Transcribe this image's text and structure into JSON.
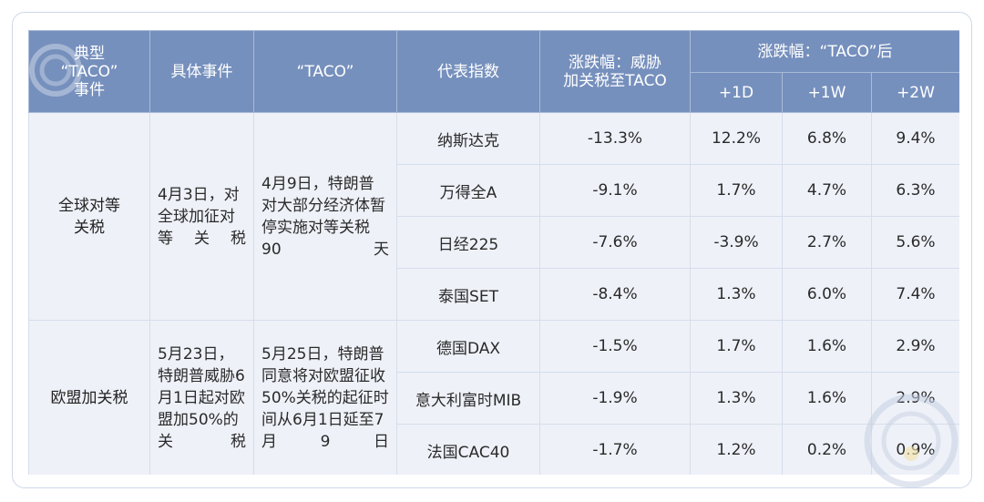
{
  "header": {
    "col_event_type": "典型\n“TACO”\n事件",
    "col_specific_event": "具体事件",
    "col_taco": "“TACO”",
    "col_index": "代表指数",
    "col_threat": "涨跌幅：威胁\n加关税至TACO",
    "col_after": "涨跌幅：“TACO”后",
    "sub_1d": "+1D",
    "sub_1w": "+1W",
    "sub_2w": "+2W"
  },
  "groups": [
    {
      "type": "全球对等\n关税",
      "event": "4月3日，对全球加征对等关税",
      "taco": "4月9日，特朗普对大部分经济体暂停实施对等关税90天",
      "rows": [
        {
          "index": "纳斯达克",
          "threat": "-13.3%",
          "d1": "12.2%",
          "w1": "6.8%",
          "w2": "9.4%"
        },
        {
          "index": "万得全A",
          "threat": "-9.1%",
          "d1": "1.7%",
          "w1": "4.7%",
          "w2": "6.3%"
        },
        {
          "index": "日经225",
          "threat": "-7.6%",
          "d1": "-3.9%",
          "w1": "2.7%",
          "w2": "5.6%"
        },
        {
          "index": "泰国SET",
          "threat": "-8.4%",
          "d1": "1.3%",
          "w1": "6.0%",
          "w2": "7.4%"
        }
      ]
    },
    {
      "type": "欧盟加关税",
      "event": "5月23日，特朗普威胁6月1日起对欧盟加50%的关税",
      "taco": "5月25日，特朗普同意将对欧盟征收50%关税的起征时间从6月1日延至7月9日",
      "rows": [
        {
          "index": "德国DAX",
          "threat": "-1.5%",
          "d1": "1.7%",
          "w1": "1.6%",
          "w2": "2.9%"
        },
        {
          "index": "意大利富时MIB",
          "threat": "-1.9%",
          "d1": "1.3%",
          "w1": "1.6%",
          "w2": "2.9%"
        },
        {
          "index": "法国CAC40",
          "threat": "-1.7%",
          "d1": "1.2%",
          "w1": "0.2%",
          "w2": "0.9%"
        }
      ]
    }
  ],
  "colors": {
    "header_bg": "#7690bd",
    "body_bg": "#eef1f8",
    "border": "#d6deea"
  },
  "icons": {
    "logo": "circle-logo-icon",
    "watermark": "watermark-logo-icon"
  }
}
